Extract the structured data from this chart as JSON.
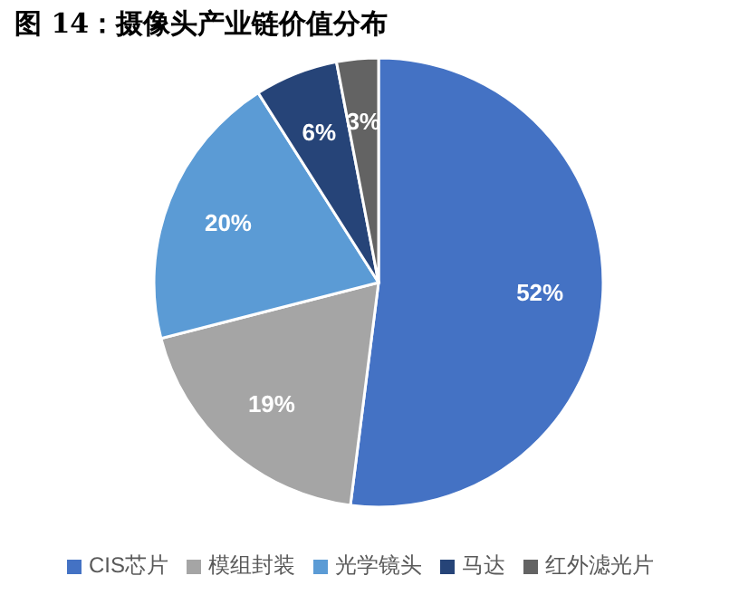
{
  "chart_data": {
    "type": "pie",
    "title": "图 14：摄像头产业链价值分布",
    "categories": [
      "CIS芯片",
      "模组封装",
      "光学镜头",
      "马达",
      "红外滤光片"
    ],
    "values": [
      52,
      19,
      20,
      6,
      3
    ],
    "colors": [
      "#4472c4",
      "#a5a5a5",
      "#5b9bd5",
      "#264478",
      "#636363"
    ],
    "value_labels": [
      "52%",
      "19%",
      "20%",
      "6%",
      "3%"
    ],
    "legend": "bottom"
  }
}
